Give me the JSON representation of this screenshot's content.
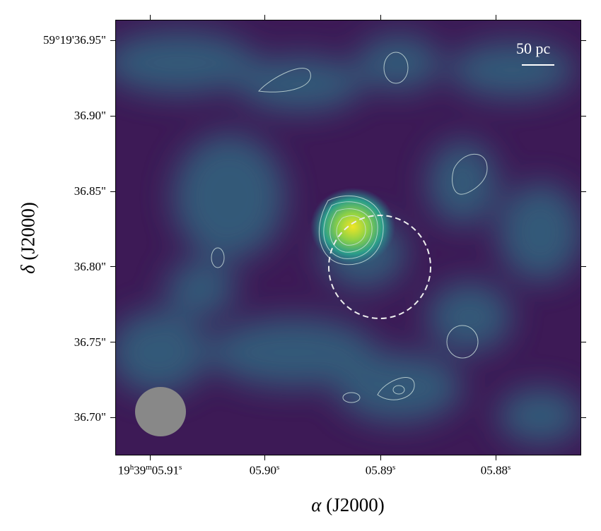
{
  "chart_data": {
    "type": "heatmap",
    "xlabel_symbol": "α",
    "xlabel_text": " (J2000)",
    "ylabel_symbol": "δ",
    "ylabel_text": " (J2000)",
    "x_ticks": [
      {
        "h": "19",
        "hs": "h",
        "m": "39",
        "ms": "m",
        "s": "05.91",
        "ss": "s"
      },
      {
        "s": "05.90",
        "ss": "s"
      },
      {
        "s": "05.89",
        "ss": "s"
      },
      {
        "s": "05.88",
        "ss": "s"
      }
    ],
    "y_ticks": [
      "59°19'36.95\"",
      "36.90\"",
      "36.85\"",
      "36.80\"",
      "36.75\"",
      "36.70\""
    ],
    "y_tick_values": [
      36.95,
      36.9,
      36.85,
      36.8,
      36.75,
      36.7
    ],
    "scalebar_label": "50 pc",
    "colormap": "viridis",
    "peak": {
      "ra_s": 5.8915,
      "dec_s": 36.827
    },
    "dashed_circle": {
      "center_ra_s": 5.89,
      "center_dec_s": 36.8
    },
    "beam_color": "#888888"
  }
}
